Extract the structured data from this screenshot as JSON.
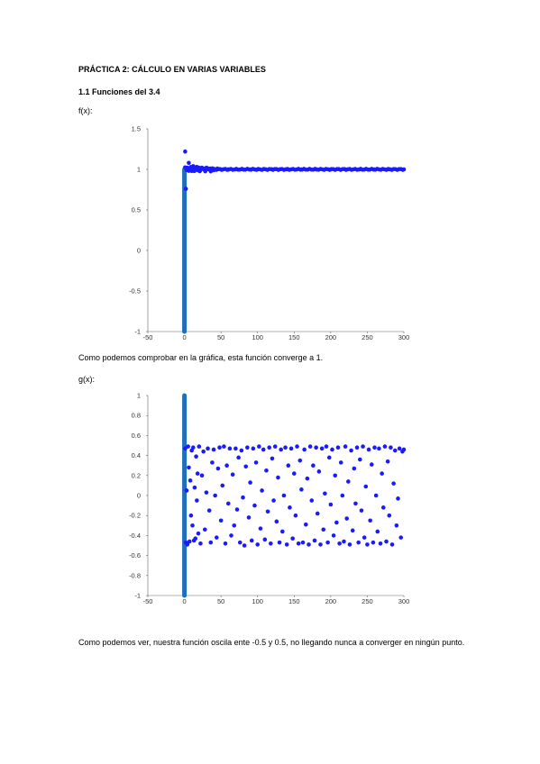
{
  "document": {
    "title": "PRÁCTICA 2: CÁLCULO EN VARIAS VARIABLES",
    "section": "1.1 Funciones del 3.4",
    "f_label": "f(x):",
    "f_caption": "Como podemos comprobar en la gráfica, esta función converge a 1.",
    "g_label": "g(x):",
    "g_caption": "Como podemos ver, nuestra función oscila ente -0.5 y 0.5, no llegando nunca a converger en ningún punto."
  },
  "colors": {
    "points": "#1a1aff",
    "axis_bar": "#1f6fbf",
    "axis_line": "#666666"
  },
  "chart_data": [
    {
      "type": "scatter",
      "xlim": [
        -50,
        300
      ],
      "ylim": [
        -1,
        1.5
      ],
      "x_ticks": [
        "-50",
        "0",
        "50",
        "100",
        "150",
        "200",
        "250",
        "300"
      ],
      "y_ticks": [
        "1.5",
        "1",
        "0.5",
        "0",
        "-0.5",
        "-1"
      ],
      "series": [
        {
          "description_values": "x from 1 to 300, y ≈ 1 with small oscillations near x=0",
          "points": [
            [
              1,
              1.22
            ],
            [
              2,
              0.76
            ],
            [
              3,
              1.0
            ],
            [
              4,
              1.02
            ],
            [
              5,
              1.0
            ],
            [
              6,
              1.08
            ],
            [
              7,
              0.99
            ],
            [
              8,
              1.02
            ],
            [
              9,
              1.03
            ],
            [
              10,
              0.98
            ],
            [
              11,
              1.01
            ],
            [
              12,
              1.04
            ],
            [
              13,
              1.0
            ],
            [
              14,
              0.99
            ],
            [
              15,
              1.02
            ],
            [
              16,
              1.0
            ],
            [
              17,
              1.03
            ],
            [
              18,
              0.99
            ],
            [
              19,
              1.01
            ],
            [
              20,
              1.02
            ],
            [
              22,
              0.99
            ],
            [
              24,
              1.02
            ],
            [
              26,
              1.01
            ],
            [
              28,
              0.99
            ],
            [
              30,
              1.02
            ],
            [
              33,
              1.0
            ],
            [
              36,
              1.01
            ],
            [
              40,
              0.99
            ],
            [
              45,
              1.01
            ],
            [
              50,
              1.0
            ],
            [
              60,
              1.0
            ],
            [
              70,
              1.0
            ],
            [
              80,
              1.0
            ],
            [
              90,
              1.0
            ],
            [
              100,
              1.0
            ],
            [
              120,
              1.0
            ],
            [
              140,
              1.0
            ],
            [
              160,
              1.0
            ],
            [
              180,
              1.0
            ],
            [
              200,
              1.0
            ],
            [
              220,
              1.0
            ],
            [
              240,
              1.0
            ],
            [
              260,
              1.0
            ],
            [
              280,
              1.0
            ],
            [
              300,
              1.0
            ]
          ]
        }
      ],
      "vertical_bar": {
        "x": 0,
        "y_from": -1,
        "y_to": 1
      }
    },
    {
      "type": "scatter",
      "xlim": [
        -50,
        300
      ],
      "ylim": [
        -1,
        1
      ],
      "x_ticks": [
        "-50",
        "0",
        "50",
        "100",
        "150",
        "200",
        "250",
        "300"
      ],
      "y_ticks": [
        "1",
        "0.8",
        "0.6",
        "0.4",
        "0.2",
        "0",
        "-0.2",
        "-0.4",
        "-0.6",
        "-0.8",
        "-1"
      ],
      "series": [
        {
          "points": [
            [
              1,
              0.47
            ],
            [
              2,
              -0.47
            ],
            [
              3,
              0.05
            ],
            [
              4,
              -0.49
            ],
            [
              5,
              0.49
            ],
            [
              6,
              0.28
            ],
            [
              7,
              -0.46
            ],
            [
              8,
              0.15
            ],
            [
              9,
              -0.2
            ],
            [
              10,
              0.45
            ],
            [
              11,
              -0.3
            ],
            [
              12,
              0.48
            ],
            [
              13,
              -0.45
            ],
            [
              14,
              0.08
            ],
            [
              15,
              -0.43
            ],
            [
              16,
              0.39
            ],
            [
              17,
              -0.05
            ],
            [
              18,
              0.22
            ],
            [
              19,
              -0.38
            ],
            [
              20,
              0.49
            ],
            [
              22,
              -0.48
            ],
            [
              24,
              0.2
            ],
            [
              26,
              0.44
            ],
            [
              28,
              -0.34
            ],
            [
              30,
              0.03
            ],
            [
              32,
              0.47
            ],
            [
              34,
              -0.15
            ],
            [
              36,
              -0.47
            ],
            [
              38,
              0.33
            ],
            [
              40,
              0.46
            ],
            [
              42,
              0.0
            ],
            [
              44,
              -0.42
            ],
            [
              46,
              0.27
            ],
            [
              48,
              0.48
            ],
            [
              50,
              -0.25
            ],
            [
              52,
              0.1
            ],
            [
              54,
              0.49
            ],
            [
              56,
              -0.48
            ],
            [
              58,
              0.3
            ],
            [
              60,
              -0.08
            ],
            [
              62,
              0.47
            ],
            [
              64,
              -0.4
            ],
            [
              66,
              0.21
            ],
            [
              68,
              -0.3
            ],
            [
              70,
              0.47
            ],
            [
              72,
              -0.14
            ],
            [
              74,
              0.38
            ],
            [
              76,
              -0.47
            ],
            [
              78,
              0.45
            ],
            [
              80,
              -0.02
            ],
            [
              82,
              -0.5
            ],
            [
              84,
              0.29
            ],
            [
              86,
              0.48
            ],
            [
              88,
              -0.22
            ],
            [
              90,
              0.13
            ],
            [
              92,
              -0.45
            ],
            [
              94,
              0.47
            ],
            [
              96,
              -0.1
            ],
            [
              98,
              0.33
            ],
            [
              100,
              -0.49
            ],
            [
              102,
              0.49
            ],
            [
              104,
              -0.33
            ],
            [
              106,
              0.05
            ],
            [
              108,
              0.46
            ],
            [
              110,
              -0.44
            ],
            [
              112,
              0.25
            ],
            [
              114,
              -0.16
            ],
            [
              116,
              0.48
            ],
            [
              118,
              -0.48
            ],
            [
              120,
              0.37
            ],
            [
              122,
              -0.05
            ],
            [
              124,
              0.49
            ],
            [
              126,
              -0.26
            ],
            [
              128,
              0.18
            ],
            [
              130,
              -0.47
            ],
            [
              132,
              0.46
            ],
            [
              134,
              -0.36
            ],
            [
              136,
              0.0
            ],
            [
              138,
              0.48
            ],
            [
              140,
              -0.49
            ],
            [
              142,
              0.3
            ],
            [
              144,
              -0.12
            ],
            [
              146,
              0.47
            ],
            [
              148,
              -0.43
            ],
            [
              150,
              0.22
            ],
            [
              152,
              -0.2
            ],
            [
              154,
              0.49
            ],
            [
              156,
              -0.48
            ],
            [
              158,
              0.35
            ],
            [
              160,
              0.06
            ],
            [
              162,
              -0.47
            ],
            [
              164,
              0.46
            ],
            [
              166,
              -0.29
            ],
            [
              168,
              0.17
            ],
            [
              170,
              -0.49
            ],
            [
              172,
              0.49
            ],
            [
              174,
              -0.05
            ],
            [
              176,
              0.3
            ],
            [
              178,
              -0.45
            ],
            [
              180,
              0.48
            ],
            [
              182,
              -0.18
            ],
            [
              184,
              0.24
            ],
            [
              186,
              -0.49
            ],
            [
              188,
              0.47
            ],
            [
              190,
              -0.34
            ],
            [
              192,
              0.02
            ],
            [
              194,
              0.49
            ],
            [
              196,
              -0.47
            ],
            [
              198,
              0.38
            ],
            [
              200,
              -0.09
            ],
            [
              202,
              0.46
            ],
            [
              204,
              -0.4
            ],
            [
              206,
              0.2
            ],
            [
              208,
              -0.27
            ],
            [
              210,
              0.48
            ],
            [
              212,
              -0.48
            ],
            [
              214,
              0.33
            ],
            [
              216,
              0.0
            ],
            [
              218,
              -0.46
            ],
            [
              220,
              0.49
            ],
            [
              222,
              -0.23
            ],
            [
              224,
              0.14
            ],
            [
              226,
              -0.49
            ],
            [
              228,
              0.45
            ],
            [
              230,
              -0.35
            ],
            [
              232,
              0.27
            ],
            [
              234,
              -0.08
            ],
            [
              236,
              0.48
            ],
            [
              238,
              -0.47
            ],
            [
              240,
              0.36
            ],
            [
              242,
              -0.15
            ],
            [
              244,
              0.49
            ],
            [
              246,
              -0.42
            ],
            [
              248,
              0.09
            ],
            [
              250,
              -0.49
            ],
            [
              252,
              0.46
            ],
            [
              254,
              -0.25
            ],
            [
              256,
              0.31
            ],
            [
              258,
              -0.47
            ],
            [
              260,
              0.48
            ],
            [
              262,
              0.0
            ],
            [
              264,
              -0.36
            ],
            [
              266,
              0.47
            ],
            [
              268,
              -0.48
            ],
            [
              270,
              0.22
            ],
            [
              272,
              -0.12
            ],
            [
              274,
              0.49
            ],
            [
              276,
              -0.46
            ],
            [
              278,
              0.34
            ],
            [
              280,
              -0.2
            ],
            [
              282,
              0.48
            ],
            [
              284,
              -0.49
            ],
            [
              286,
              0.12
            ],
            [
              288,
              0.45
            ],
            [
              290,
              -0.3
            ],
            [
              292,
              -0.03
            ],
            [
              294,
              0.47
            ],
            [
              296,
              -0.42
            ],
            [
              298,
              0.44
            ],
            [
              300,
              0.46
            ]
          ]
        }
      ],
      "vertical_bar": {
        "x": 0,
        "y_from": -1,
        "y_to": 1
      }
    }
  ]
}
